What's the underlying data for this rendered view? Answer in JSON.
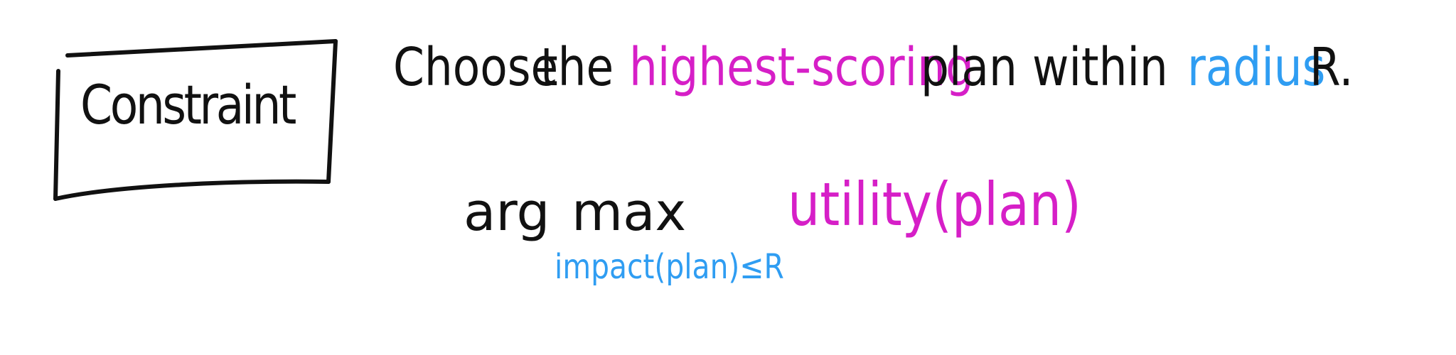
{
  "box": {
    "label": "Constraint"
  },
  "sentence": {
    "w1": "Choose",
    "w2": "the",
    "w3": "highest-scoring",
    "w4": "plan",
    "w5": "within",
    "w6": "radius",
    "w7": "R."
  },
  "formula": {
    "arg": "arg",
    "max": "max",
    "subscript": "impact(plan)≤R",
    "objective": "utility(plan)"
  },
  "colors": {
    "ink": "#111111",
    "utility": "#d61fc7",
    "impact": "#2f9df2"
  }
}
